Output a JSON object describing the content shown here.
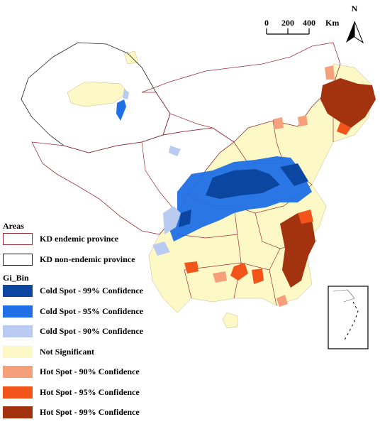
{
  "scale_bar": {
    "labels": [
      "0",
      "200",
      "400"
    ],
    "unit": "Km"
  },
  "north_arrow": {
    "label": "N"
  },
  "legend": {
    "areas_title": "Areas",
    "areas": [
      {
        "label": "KD endemic province",
        "border_color": "#9b2f38"
      },
      {
        "label": "KD non-endemic province",
        "border_color": "#222222"
      }
    ],
    "bins_title": "Gi_Bin",
    "bins": [
      {
        "label": "Cold Spot - 99% Confidence",
        "color": "#0b47a1"
      },
      {
        "label": "Cold Spot - 95% Confidence",
        "color": "#1f6fe6"
      },
      {
        "label": "Cold Spot - 90% Confidence",
        "color": "#b9cbf0"
      },
      {
        "label": "Not Significant",
        "color": "#fdf9c6"
      },
      {
        "label": "Hot Spot - 90% Confidence",
        "color": "#f5a07a"
      },
      {
        "label": "Hot Spot - 95% Confidence",
        "color": "#f2541a"
      },
      {
        "label": "Hot Spot - 99% Confidence",
        "color": "#a3330f"
      }
    ]
  }
}
